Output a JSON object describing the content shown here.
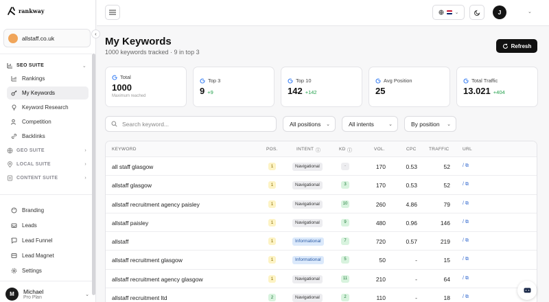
{
  "brand": {
    "name": "rankway"
  },
  "site": {
    "name": "allstaff.co.uk"
  },
  "sidebar": {
    "seo_suite": {
      "label": "SEO SUITE",
      "items": [
        {
          "label": "Rankings",
          "icon": "chart-icon"
        },
        {
          "label": "My Keywords",
          "icon": "key-icon",
          "active": true
        },
        {
          "label": "Keyword Research",
          "icon": "bulb-icon"
        },
        {
          "label": "Competition",
          "icon": "users-icon"
        },
        {
          "label": "Backlinks",
          "icon": "link-icon"
        }
      ]
    },
    "suites": [
      "GEO SUITE",
      "LOCAL SUITE",
      "CONTENT SUITE"
    ],
    "bottom_items": [
      "Branding",
      "Leads",
      "Lead Funnel",
      "Lead Magnet",
      "Settings"
    ],
    "user": {
      "name": "Michael",
      "plan": "Pro Plan",
      "initial": "M"
    }
  },
  "topbar": {
    "avatar_initial": "J"
  },
  "page": {
    "title": "My Keywords",
    "subtitle": "1000 keywords tracked · 9 in top 3",
    "refresh_label": "Refresh"
  },
  "stats": [
    {
      "label": "Total",
      "value": "1000",
      "note": "Maximum reached"
    },
    {
      "label": "Top 3",
      "value": "9",
      "delta": "+9"
    },
    {
      "label": "Top 10",
      "value": "142",
      "delta": "+142"
    },
    {
      "label": "Avg Position",
      "value": "25"
    },
    {
      "label": "Total Traffic",
      "value": "13.021",
      "delta": "+404"
    }
  ],
  "filters": {
    "search_placeholder": "Search keyword...",
    "positions": "All positions",
    "intents": "All intents",
    "sort": "By position"
  },
  "table": {
    "headers": {
      "keyword": "KEYWORD",
      "pos": "POS.",
      "intent": "INTENT",
      "kd": "KD",
      "vol": "VOL.",
      "cpc": "CPC",
      "traffic": "TRAFFIC",
      "url": "URL"
    },
    "rows": [
      {
        "keyword": "all staff glasgow",
        "pos": "1",
        "intent": "Navigational",
        "kd": "-",
        "vol": "170",
        "cpc": "0.53",
        "traffic": "52",
        "url": "/"
      },
      {
        "keyword": "allstaff glasgow",
        "pos": "1",
        "intent": "Navigational",
        "kd": "3",
        "vol": "170",
        "cpc": "0.53",
        "traffic": "52",
        "url": "/"
      },
      {
        "keyword": "allstaff recruitment agency paisley",
        "pos": "1",
        "intent": "Navigational",
        "kd": "10",
        "vol": "260",
        "cpc": "4.86",
        "traffic": "79",
        "url": "/"
      },
      {
        "keyword": "allstaff paisley",
        "pos": "1",
        "intent": "Navigational",
        "kd": "9",
        "vol": "480",
        "cpc": "0.96",
        "traffic": "146",
        "url": "/"
      },
      {
        "keyword": "allstaff",
        "pos": "1",
        "intent": "Informational",
        "kd": "7",
        "vol": "720",
        "cpc": "0.57",
        "traffic": "219",
        "url": "/"
      },
      {
        "keyword": "allstaff recruitment glasgow",
        "pos": "1",
        "intent": "Informational",
        "kd": "5",
        "vol": "50",
        "cpc": "-",
        "traffic": "15",
        "url": "/"
      },
      {
        "keyword": "allstaff recruitment agency glasgow",
        "pos": "1",
        "intent": "Navigational",
        "kd": "11",
        "vol": "210",
        "cpc": "-",
        "traffic": "64",
        "url": "/"
      },
      {
        "keyword": "allstaff recruitment ltd",
        "pos": "2",
        "intent": "Navigational",
        "kd": "2",
        "vol": "110",
        "cpc": "-",
        "traffic": "18",
        "url": "/"
      }
    ]
  }
}
